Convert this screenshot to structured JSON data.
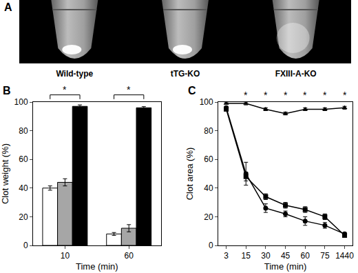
{
  "panel_a": {
    "label": "A",
    "labels": [
      "Wild-type",
      "tTG-KO",
      "FXIII-A-KO"
    ]
  },
  "chart_data": [
    {
      "type": "bar",
      "title": "B",
      "x_label": "Time (min)",
      "y_label": "Clot weight (%)",
      "categories": [
        "10",
        "60"
      ],
      "series": [
        {
          "color": "#ffffff",
          "values": [
            40,
            8
          ],
          "errors": [
            1.5,
            1
          ]
        },
        {
          "color": "#a6a6a6",
          "values": [
            44,
            12
          ],
          "errors": [
            2.5,
            2.5
          ]
        },
        {
          "color": "#000000",
          "values": [
            97,
            96
          ],
          "errors": [
            1,
            0.8
          ]
        }
      ],
      "ylim": [
        0,
        100
      ],
      "yticks": [
        0,
        20,
        40,
        60,
        80,
        100
      ],
      "annotations": [
        {
          "x": "10",
          "text": "*"
        },
        {
          "x": "60",
          "text": "*"
        }
      ]
    },
    {
      "type": "line",
      "title": "C",
      "x_label": "Time (min)",
      "y_label": "Clot area (%)",
      "categories": [
        "3",
        "15",
        "30",
        "45",
        "60",
        "75",
        "1440"
      ],
      "series": [
        {
          "color": "#000000",
          "marker": "circle",
          "values": [
            96,
            50,
            26,
            22,
            17,
            14,
            8
          ],
          "errors": [
            1,
            8,
            3,
            2,
            3,
            2,
            1
          ]
        },
        {
          "color": "#000000",
          "marker": "square",
          "values": [
            95,
            48,
            34,
            28,
            25,
            20,
            7
          ],
          "errors": [
            1,
            3,
            2,
            2,
            2,
            2,
            1
          ]
        },
        {
          "color": "#000000",
          "marker": "triangle-up",
          "values": [
            99,
            99,
            95,
            92,
            95,
            95,
            96
          ],
          "errors": [
            0.5,
            1,
            1,
            1,
            1,
            1,
            1
          ]
        }
      ],
      "ylim": [
        0,
        100
      ],
      "yticks": [
        0,
        20,
        40,
        60,
        80,
        100
      ],
      "annotations": [
        {
          "x": "15",
          "text": "*"
        },
        {
          "x": "30",
          "text": "*"
        },
        {
          "x": "45",
          "text": "*"
        },
        {
          "x": "60",
          "text": "*"
        },
        {
          "x": "75",
          "text": "*"
        },
        {
          "x": "1440",
          "text": "*"
        }
      ]
    }
  ]
}
